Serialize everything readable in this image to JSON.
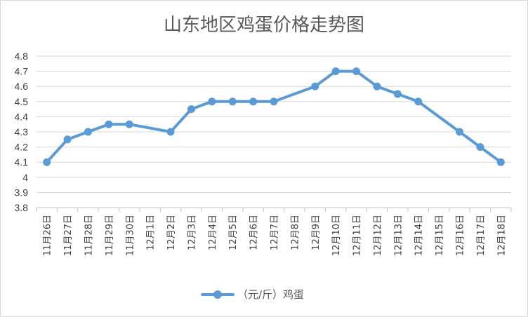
{
  "chart_data": {
    "type": "line",
    "title": "山东地区鸡蛋价格走势图",
    "categories": [
      "11月26日",
      "11月27日",
      "11月28日",
      "11月29日",
      "11月30日",
      "12月1日",
      "12月2日",
      "12月3日",
      "12月4日",
      "12月5日",
      "12月6日",
      "12月7日",
      "12月8日",
      "12月9日",
      "12月10日",
      "12月11日",
      "12月12日",
      "12月13日",
      "12月14日",
      "12月15日",
      "12月16日",
      "12月17日",
      "12月18日"
    ],
    "series": [
      {
        "name": "（元/斤）鸡蛋",
        "color": "#5b9bd5",
        "values": [
          4.1,
          4.25,
          4.3,
          4.35,
          4.35,
          null,
          4.3,
          4.45,
          4.5,
          4.5,
          4.5,
          4.5,
          null,
          4.6,
          4.7,
          4.7,
          4.6,
          4.55,
          4.5,
          null,
          4.3,
          4.2,
          4.1
        ]
      }
    ],
    "yticks": [
      "3.8",
      "3.9",
      "4",
      "4.1",
      "4.2",
      "4.3",
      "4.4",
      "4.5",
      "4.6",
      "4.7",
      "4.8"
    ],
    "ylim": [
      3.8,
      4.8
    ],
    "grid": true,
    "legend": "bottom",
    "xlabel": "",
    "ylabel": ""
  }
}
